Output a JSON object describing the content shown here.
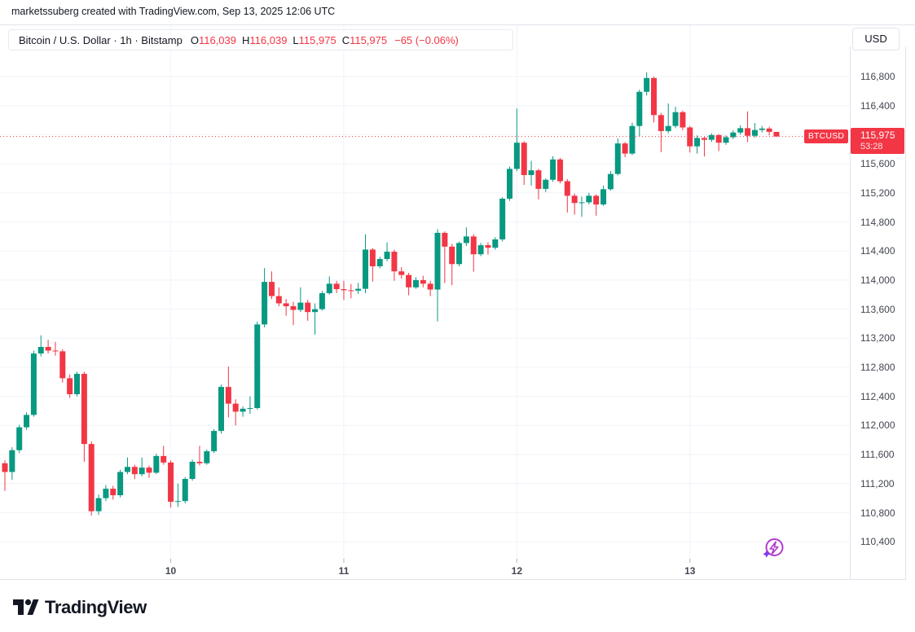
{
  "attribution": "marketssuberg created with TradingView.com, Sep 13, 2025 12:06 UTC",
  "header": {
    "symbol_title": "Bitcoin / U.S. Dollar · 1h · Bitstamp",
    "ohlc": [
      {
        "label": "O",
        "value": "116,039"
      },
      {
        "label": "H",
        "value": "116,039"
      },
      {
        "label": "L",
        "value": "115,975"
      },
      {
        "label": "C",
        "value": "115,975"
      }
    ],
    "change": "−65 (−0.06%)",
    "currency_button": "USD"
  },
  "last_price": {
    "symbol": "BTCUSD",
    "price": "115,975",
    "countdown": "53:28"
  },
  "price_scale": {
    "labels": [
      "116,800",
      "116,400",
      "116,000",
      "115,600",
      "115,200",
      "114,800",
      "114,400",
      "114,000",
      "113,600",
      "113,200",
      "112,800",
      "112,400",
      "112,000",
      "111,600",
      "111,200",
      "110,800",
      "110,400"
    ],
    "min": 110400,
    "max": 116800,
    "step": 400
  },
  "time_scale": {
    "labels": [
      {
        "label": "10",
        "index": 23
      },
      {
        "label": "11",
        "index": 47
      },
      {
        "label": "12",
        "index": 71
      },
      {
        "label": "13",
        "index": 95
      }
    ],
    "timezone": "UTC"
  },
  "footer": {
    "logo_text": "TradingView"
  },
  "icons": {
    "chart_marker": "lightning-circle-icon",
    "logo_mark": "tradingview-logo-icon"
  },
  "colors": {
    "up": "#089981",
    "down": "#f23645",
    "grid": "#f0f3fa",
    "tick": "#b2b5be",
    "text": "#131722",
    "subtext": "#434651",
    "border": "#e0e3eb",
    "badge": "#f23645",
    "purple": "#b23bce",
    "star": "#7c3aed"
  },
  "chart_data": {
    "type": "candlestick",
    "title": "Bitcoin / U.S. Dollar",
    "symbol": "BTCUSD",
    "exchange": "Bitstamp",
    "interval": "1h",
    "start_time": "2025-09-09 01:00 UTC",
    "end_time": "2025-09-13 12:00 UTC",
    "interval_hours": 1,
    "ylim": [
      110400,
      116800
    ],
    "grid": true,
    "last_price": 115975,
    "last_change": -65,
    "last_change_pct": -0.06,
    "candles_format": [
      "open",
      "high",
      "low",
      "close"
    ],
    "candles": [
      [
        111480,
        111520,
        111100,
        111360
      ],
      [
        111360,
        111700,
        111250,
        111660
      ],
      [
        111660,
        112010,
        111620,
        111975
      ],
      [
        111975,
        112180,
        111940,
        112145
      ],
      [
        112145,
        113030,
        112120,
        112990
      ],
      [
        112990,
        113240,
        112950,
        113080
      ],
      [
        113080,
        113180,
        112990,
        113030
      ],
      [
        113030,
        113150,
        112960,
        113020
      ],
      [
        113020,
        113050,
        112590,
        112650
      ],
      [
        112650,
        112700,
        112380,
        112430
      ],
      [
        112430,
        112740,
        112400,
        112710
      ],
      [
        112710,
        112740,
        111500,
        111745
      ],
      [
        111745,
        111780,
        110760,
        110820
      ],
      [
        110820,
        111050,
        110770,
        111000
      ],
      [
        111000,
        111180,
        110960,
        111130
      ],
      [
        111130,
        111170,
        110980,
        111040
      ],
      [
        111040,
        111390,
        111010,
        111360
      ],
      [
        111360,
        111560,
        111330,
        111430
      ],
      [
        111430,
        111460,
        111260,
        111330
      ],
      [
        111330,
        111560,
        111300,
        111420
      ],
      [
        111420,
        111450,
        111280,
        111350
      ],
      [
        111350,
        111610,
        111330,
        111580
      ],
      [
        111580,
        111720,
        111460,
        111490
      ],
      [
        111490,
        111520,
        110870,
        110950
      ],
      [
        110950,
        111200,
        110880,
        110960
      ],
      [
        110960,
        111290,
        110930,
        111265
      ],
      [
        111265,
        111530,
        111240,
        111500
      ],
      [
        111500,
        111720,
        111450,
        111480
      ],
      [
        111480,
        111670,
        111460,
        111645
      ],
      [
        111645,
        111950,
        111620,
        111925
      ],
      [
        111925,
        112560,
        111890,
        112530
      ],
      [
        112530,
        112810,
        112110,
        112300
      ],
      [
        112300,
        112360,
        112000,
        112190
      ],
      [
        112190,
        112260,
        112120,
        112230
      ],
      [
        112230,
        112400,
        112160,
        112240
      ],
      [
        112240,
        113430,
        112220,
        113390
      ],
      [
        113390,
        114165,
        113350,
        113975
      ],
      [
        113975,
        114120,
        113740,
        113780
      ],
      [
        113780,
        113900,
        113640,
        113680
      ],
      [
        113680,
        113740,
        113510,
        113640
      ],
      [
        113640,
        113700,
        113380,
        113590
      ],
      [
        113590,
        113900,
        113560,
        113690
      ],
      [
        113690,
        113730,
        113440,
        113560
      ],
      [
        113560,
        113680,
        113250,
        113600
      ],
      [
        113600,
        113850,
        113580,
        113820
      ],
      [
        113820,
        114050,
        113800,
        113950
      ],
      [
        113950,
        113990,
        113820,
        113875
      ],
      [
        113875,
        113990,
        113725,
        113860
      ],
      [
        113860,
        113945,
        113750,
        113855
      ],
      [
        113855,
        113960,
        113810,
        113880
      ],
      [
        113880,
        114630,
        113820,
        114420
      ],
      [
        114420,
        114440,
        113980,
        114190
      ],
      [
        114190,
        114320,
        114160,
        114290
      ],
      [
        114290,
        114520,
        114260,
        114390
      ],
      [
        114390,
        114420,
        113990,
        114120
      ],
      [
        114120,
        114180,
        114020,
        114070
      ],
      [
        114070,
        114100,
        113790,
        113900
      ],
      [
        113900,
        114040,
        113880,
        114000
      ],
      [
        114000,
        114060,
        113900,
        113950
      ],
      [
        113950,
        113990,
        113780,
        113870
      ],
      [
        113870,
        114700,
        113430,
        114650
      ],
      [
        114650,
        114670,
        113960,
        114460
      ],
      [
        114460,
        114500,
        113930,
        114220
      ],
      [
        114220,
        114530,
        114190,
        114510
      ],
      [
        114510,
        114725,
        114470,
        114600
      ],
      [
        114600,
        114630,
        114115,
        114355
      ],
      [
        114355,
        114510,
        114330,
        114480
      ],
      [
        114480,
        114520,
        114350,
        114445
      ],
      [
        114445,
        114590,
        114420,
        114560
      ],
      [
        114560,
        115140,
        114530,
        115120
      ],
      [
        115120,
        115560,
        115090,
        115530
      ],
      [
        115530,
        116360,
        115500,
        115890
      ],
      [
        115890,
        115910,
        115310,
        115445
      ],
      [
        115445,
        115640,
        115300,
        115510
      ],
      [
        115510,
        115530,
        115110,
        115255
      ],
      [
        115255,
        115400,
        115210,
        115380
      ],
      [
        115380,
        115705,
        115350,
        115660
      ],
      [
        115660,
        115680,
        115330,
        115360
      ],
      [
        115360,
        115390,
        114930,
        115160
      ],
      [
        115160,
        115190,
        114900,
        115060
      ],
      [
        115060,
        115150,
        114870,
        115070
      ],
      [
        115070,
        115200,
        115040,
        115160
      ],
      [
        115160,
        115180,
        114885,
        115040
      ],
      [
        115040,
        115300,
        115020,
        115250
      ],
      [
        115250,
        115500,
        115230,
        115460
      ],
      [
        115460,
        115950,
        115440,
        115880
      ],
      [
        115880,
        115900,
        115690,
        115740
      ],
      [
        115740,
        116165,
        115720,
        116120
      ],
      [
        116120,
        116620,
        115980,
        116590
      ],
      [
        116590,
        116860,
        116540,
        116780
      ],
      [
        116780,
        116800,
        116170,
        116270
      ],
      [
        116270,
        116300,
        115760,
        116050
      ],
      [
        116050,
        116430,
        116020,
        116120
      ],
      [
        116120,
        116385,
        116090,
        116310
      ],
      [
        116310,
        116330,
        116060,
        116100
      ],
      [
        116100,
        116120,
        115755,
        115840
      ],
      [
        115840,
        115990,
        115740,
        115955
      ],
      [
        115955,
        115975,
        115700,
        115930
      ],
      [
        115930,
        116020,
        115900,
        115995
      ],
      [
        115995,
        116010,
        115775,
        115890
      ],
      [
        115890,
        115990,
        115860,
        115965
      ],
      [
        115965,
        116060,
        115940,
        116030
      ],
      [
        116030,
        116130,
        116000,
        116090
      ],
      [
        116090,
        116320,
        115900,
        115985
      ],
      [
        115985,
        116160,
        115960,
        116065
      ],
      [
        116065,
        116120,
        116030,
        116085
      ],
      [
        116085,
        116110,
        115990,
        116039
      ],
      [
        116039,
        116039,
        115975,
        115975
      ]
    ]
  }
}
